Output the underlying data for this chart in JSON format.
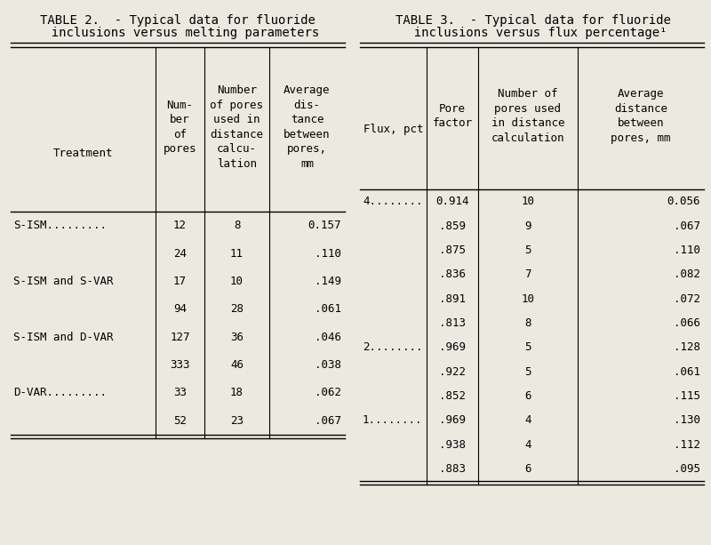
{
  "bg_color": "#ece9e0",
  "title1_line1": "TABLE 2.  - Typical data for fluoride",
  "title1_line2": "  inclusions versus melting parameters",
  "title2_line1": "TABLE 3.  - Typical data for fluoride",
  "title2_line2": "  inclusions versus flux percentage¹",
  "table1_col_headers": [
    "Treatment",
    "Num-\nber\nof\npores",
    "Number\nof pores\nused in\ndistance\ncalcu-\nlation",
    "Average\ndis-\ntance\nbetween\npores,\nmm"
  ],
  "table1_data": [
    [
      "S-ISM.........",
      "12",
      "8",
      "0.157"
    ],
    [
      "",
      "24",
      "11",
      ".110"
    ],
    [
      "S-ISM and S-VAR",
      "17",
      "10",
      ".149"
    ],
    [
      "",
      "94",
      "28",
      ".061"
    ],
    [
      "S-ISM and D-VAR",
      "127",
      "36",
      ".046"
    ],
    [
      "",
      "333",
      "46",
      ".038"
    ],
    [
      "D-VAR.........",
      "33",
      "18",
      ".062"
    ],
    [
      "",
      "52",
      "23",
      ".067"
    ]
  ],
  "table2_col_headers": [
    "Flux, pct",
    "Pore\nfactor",
    "Number of\npores used\nin distance\ncalculation",
    "Average\ndistance\nbetween\npores, mm"
  ],
  "table2_data": [
    [
      "4........",
      "0.914",
      "10",
      "0.056"
    ],
    [
      "",
      ".859",
      "9",
      ".067"
    ],
    [
      "",
      ".875",
      "5",
      ".110"
    ],
    [
      "",
      ".836",
      "7",
      ".082"
    ],
    [
      "",
      ".891",
      "10",
      ".072"
    ],
    [
      "",
      ".813",
      "8",
      ".066"
    ],
    [
      "2........",
      ".969",
      "5",
      ".128"
    ],
    [
      "",
      ".922",
      "5",
      ".061"
    ],
    [
      "",
      ".852",
      "6",
      ".115"
    ],
    [
      "1........",
      ".969",
      "4",
      ".130"
    ],
    [
      "",
      ".938",
      "4",
      ".112"
    ],
    [
      "",
      ".883",
      "6",
      ".095"
    ]
  ],
  "font_family": "monospace",
  "font_size": 9.0,
  "title_font_size": 10.0
}
